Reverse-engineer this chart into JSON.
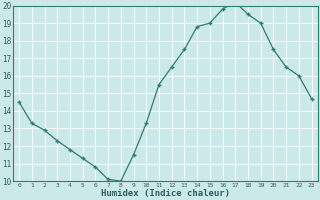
{
  "x": [
    0,
    1,
    2,
    3,
    4,
    5,
    6,
    7,
    8,
    9,
    10,
    11,
    12,
    13,
    14,
    15,
    16,
    17,
    18,
    19,
    20,
    21,
    22,
    23
  ],
  "y": [
    14.5,
    13.3,
    12.9,
    12.3,
    11.8,
    11.3,
    10.8,
    10.1,
    10.0,
    11.5,
    13.3,
    15.5,
    16.5,
    17.5,
    18.8,
    19.0,
    19.8,
    20.2,
    19.5,
    19.0,
    17.5,
    16.5,
    16.0,
    14.7
  ],
  "xlabel": "Humidex (Indice chaleur)",
  "ylim": [
    10,
    20
  ],
  "xlim_min": -0.5,
  "xlim_max": 23.5,
  "yticks": [
    10,
    11,
    12,
    13,
    14,
    15,
    16,
    17,
    18,
    19,
    20
  ],
  "xticks": [
    0,
    1,
    2,
    3,
    4,
    5,
    6,
    7,
    8,
    9,
    10,
    11,
    12,
    13,
    14,
    15,
    16,
    17,
    18,
    19,
    20,
    21,
    22,
    23
  ],
  "line_color": "#2e7d6e",
  "bg_color": "#cce9e9",
  "grid_color": "#b5d5d5",
  "axis_bg": "#cce9e9",
  "tick_label_color": "#2e5d5d",
  "xlabel_color": "#2e5d5d",
  "spine_color": "#2e7d6e"
}
